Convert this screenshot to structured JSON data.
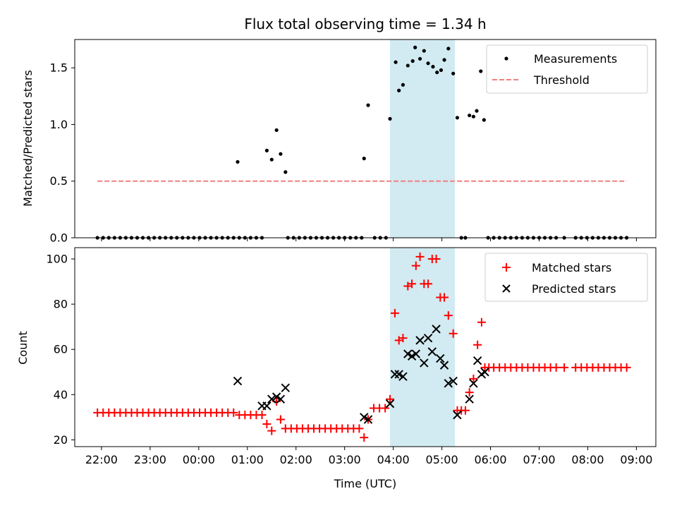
{
  "figure": {
    "title": "Flux total observing time = 1.34 h"
  },
  "colors": {
    "measurements": "#000000",
    "threshold": "#f08080",
    "matched": "#ff0000",
    "predicted": "#000000",
    "highlight": "#add8e6"
  },
  "chart_data": [
    {
      "type": "scatter",
      "title": "Flux total observing time = 1.34 h",
      "ylabel": "Matched/Predicted stars",
      "xlabel": "",
      "x_unit": "hours since 22:00 UTC",
      "xlim": [
        -0.55,
        11.4
      ],
      "ylim": [
        0,
        1.75
      ],
      "yticks": [
        0.0,
        0.5,
        1.0,
        1.5
      ],
      "ytick_labels": [
        "0.0",
        "0.5",
        "1.0",
        "1.5"
      ],
      "highlight_span": {
        "x_start": "03:56",
        "x_end": "05:16"
      },
      "legend": {
        "placement": "upper right",
        "entries": [
          "Measurements",
          "Threshold"
        ]
      },
      "series": [
        {
          "name": "Measurements",
          "marker": "dot",
          "points": [
            [
              "21:55",
              0
            ],
            [
              "22:02",
              0
            ],
            [
              "22:09",
              0
            ],
            [
              "22:16",
              0
            ],
            [
              "22:23",
              0
            ],
            [
              "22:30",
              0
            ],
            [
              "22:37",
              0
            ],
            [
              "22:44",
              0
            ],
            [
              "22:51",
              0
            ],
            [
              "22:58",
              0
            ],
            [
              "23:05",
              0
            ],
            [
              "23:12",
              0
            ],
            [
              "23:19",
              0
            ],
            [
              "23:26",
              0
            ],
            [
              "23:33",
              0
            ],
            [
              "23:40",
              0
            ],
            [
              "23:47",
              0
            ],
            [
              "23:54",
              0
            ],
            [
              "00:01",
              0
            ],
            [
              "00:08",
              0
            ],
            [
              "00:15",
              0
            ],
            [
              "00:22",
              0
            ],
            [
              "00:29",
              0
            ],
            [
              "00:36",
              0
            ],
            [
              "00:43",
              0
            ],
            [
              "00:50",
              0
            ],
            [
              "00:48",
              0.67
            ],
            [
              "00:57",
              0
            ],
            [
              "01:04",
              0
            ],
            [
              "01:11",
              0
            ],
            [
              "01:18",
              0
            ],
            [
              "01:24",
              0.77
            ],
            [
              "01:30",
              0.69
            ],
            [
              "01:36",
              0.95
            ],
            [
              "01:41",
              0.74
            ],
            [
              "01:47",
              0.58
            ],
            [
              "01:50",
              0
            ],
            [
              "01:57",
              0
            ],
            [
              "02:04",
              0
            ],
            [
              "02:11",
              0
            ],
            [
              "02:18",
              0
            ],
            [
              "02:25",
              0
            ],
            [
              "02:32",
              0
            ],
            [
              "02:39",
              0
            ],
            [
              "02:46",
              0
            ],
            [
              "02:53",
              0
            ],
            [
              "03:00",
              0
            ],
            [
              "03:07",
              0
            ],
            [
              "03:14",
              0
            ],
            [
              "03:21",
              0
            ],
            [
              "03:24",
              0.7
            ],
            [
              "03:29",
              1.17
            ],
            [
              "03:37",
              0
            ],
            [
              "03:44",
              0
            ],
            [
              "03:51",
              0
            ],
            [
              "03:56",
              1.05
            ],
            [
              "04:03",
              1.55
            ],
            [
              "04:07",
              1.3
            ],
            [
              "04:12",
              1.35
            ],
            [
              "04:18",
              1.52
            ],
            [
              "04:24",
              1.56
            ],
            [
              "04:27",
              1.68
            ],
            [
              "04:33",
              1.58
            ],
            [
              "04:38",
              1.65
            ],
            [
              "04:43",
              1.54
            ],
            [
              "04:49",
              1.51
            ],
            [
              "04:54",
              1.46
            ],
            [
              "04:59",
              1.48
            ],
            [
              "05:03",
              1.57
            ],
            [
              "05:08",
              1.67
            ],
            [
              "05:14",
              1.45
            ],
            [
              "05:19",
              1.06
            ],
            [
              "05:24",
              0
            ],
            [
              "05:29",
              0
            ],
            [
              "05:34",
              1.08
            ],
            [
              "05:39",
              1.07
            ],
            [
              "05:43",
              1.12
            ],
            [
              "05:48",
              1.47
            ],
            [
              "05:52",
              1.04
            ],
            [
              "05:57",
              0
            ],
            [
              "06:04",
              0
            ],
            [
              "06:11",
              0
            ],
            [
              "06:18",
              0
            ],
            [
              "06:25",
              0
            ],
            [
              "06:32",
              0
            ],
            [
              "06:39",
              0
            ],
            [
              "06:46",
              0
            ],
            [
              "06:53",
              0
            ],
            [
              "07:00",
              0
            ],
            [
              "07:07",
              0
            ],
            [
              "07:14",
              0
            ],
            [
              "07:21",
              0
            ],
            [
              "07:31",
              0
            ],
            [
              "07:45",
              0
            ],
            [
              "07:52",
              0
            ],
            [
              "07:59",
              0
            ],
            [
              "08:06",
              0
            ],
            [
              "08:13",
              0
            ],
            [
              "08:20",
              0
            ],
            [
              "08:27",
              0
            ],
            [
              "08:34",
              0
            ],
            [
              "08:41",
              0
            ],
            [
              "08:48",
              0
            ]
          ]
        },
        {
          "name": "Threshold",
          "style": "dashed",
          "x": [
            "21:55",
            "08:48"
          ],
          "y": [
            0.5,
            0.5
          ]
        }
      ]
    },
    {
      "type": "scatter",
      "ylabel": "Count",
      "xlabel": "Time (UTC)",
      "xlim": [
        -0.55,
        11.4
      ],
      "ylim": [
        17,
        105
      ],
      "yticks": [
        20,
        40,
        60,
        80,
        100
      ],
      "ytick_labels": [
        "20",
        "40",
        "60",
        "80",
        "100"
      ],
      "xticks": [
        "22:00",
        "23:00",
        "00:00",
        "01:00",
        "02:00",
        "03:00",
        "04:00",
        "05:00",
        "06:00",
        "07:00",
        "08:00",
        "09:00"
      ],
      "highlight_span": {
        "x_start": "03:56",
        "x_end": "05:16"
      },
      "legend": {
        "placement": "upper right",
        "entries": [
          "Matched stars",
          "Predicted stars"
        ]
      },
      "series": [
        {
          "name": "Matched stars",
          "marker": "plus",
          "points": [
            [
              "21:55",
              32
            ],
            [
              "22:02",
              32
            ],
            [
              "22:09",
              32
            ],
            [
              "22:16",
              32
            ],
            [
              "22:23",
              32
            ],
            [
              "22:30",
              32
            ],
            [
              "22:37",
              32
            ],
            [
              "22:44",
              32
            ],
            [
              "22:51",
              32
            ],
            [
              "22:58",
              32
            ],
            [
              "23:05",
              32
            ],
            [
              "23:12",
              32
            ],
            [
              "23:19",
              32
            ],
            [
              "23:26",
              32
            ],
            [
              "23:33",
              32
            ],
            [
              "23:40",
              32
            ],
            [
              "23:47",
              32
            ],
            [
              "23:54",
              32
            ],
            [
              "00:01",
              32
            ],
            [
              "00:08",
              32
            ],
            [
              "00:15",
              32
            ],
            [
              "00:22",
              32
            ],
            [
              "00:29",
              32
            ],
            [
              "00:36",
              32
            ],
            [
              "00:43",
              32
            ],
            [
              "00:50",
              31
            ],
            [
              "00:57",
              31
            ],
            [
              "01:04",
              31
            ],
            [
              "01:11",
              31
            ],
            [
              "01:18",
              31
            ],
            [
              "01:24",
              27
            ],
            [
              "01:30",
              24
            ],
            [
              "01:36",
              37
            ],
            [
              "01:41",
              29
            ],
            [
              "01:47",
              25
            ],
            [
              "01:54",
              25
            ],
            [
              "02:01",
              25
            ],
            [
              "02:08",
              25
            ],
            [
              "02:15",
              25
            ],
            [
              "02:22",
              25
            ],
            [
              "02:29",
              25
            ],
            [
              "02:36",
              25
            ],
            [
              "02:43",
              25
            ],
            [
              "02:50",
              25
            ],
            [
              "02:57",
              25
            ],
            [
              "03:04",
              25
            ],
            [
              "03:11",
              25
            ],
            [
              "03:18",
              25
            ],
            [
              "03:24",
              21
            ],
            [
              "03:29",
              29
            ],
            [
              "03:36",
              34
            ],
            [
              "03:43",
              34
            ],
            [
              "03:50",
              34
            ],
            [
              "03:56",
              38
            ],
            [
              "04:02",
              76
            ],
            [
              "04:07",
              64
            ],
            [
              "04:12",
              65
            ],
            [
              "04:18",
              88
            ],
            [
              "04:23",
              89
            ],
            [
              "04:28",
              97
            ],
            [
              "04:33",
              101
            ],
            [
              "04:38",
              89
            ],
            [
              "04:43",
              89
            ],
            [
              "04:48",
              100
            ],
            [
              "04:53",
              100
            ],
            [
              "04:58",
              83
            ],
            [
              "05:03",
              83
            ],
            [
              "05:08",
              75
            ],
            [
              "05:14",
              67
            ],
            [
              "05:19",
              33
            ],
            [
              "05:24",
              33
            ],
            [
              "05:29",
              33
            ],
            [
              "05:34",
              41
            ],
            [
              "05:39",
              47
            ],
            [
              "05:44",
              62
            ],
            [
              "05:49",
              72
            ],
            [
              "05:53",
              52
            ],
            [
              "05:58",
              52
            ],
            [
              "06:04",
              52
            ],
            [
              "06:11",
              52
            ],
            [
              "06:18",
              52
            ],
            [
              "06:25",
              52
            ],
            [
              "06:32",
              52
            ],
            [
              "06:39",
              52
            ],
            [
              "06:46",
              52
            ],
            [
              "06:53",
              52
            ],
            [
              "07:00",
              52
            ],
            [
              "07:07",
              52
            ],
            [
              "07:14",
              52
            ],
            [
              "07:21",
              52
            ],
            [
              "07:31",
              52
            ],
            [
              "07:45",
              52
            ],
            [
              "07:52",
              52
            ],
            [
              "07:59",
              52
            ],
            [
              "08:06",
              52
            ],
            [
              "08:13",
              52
            ],
            [
              "08:20",
              52
            ],
            [
              "08:27",
              52
            ],
            [
              "08:34",
              52
            ],
            [
              "08:41",
              52
            ],
            [
              "08:48",
              52
            ]
          ]
        },
        {
          "name": "Predicted stars",
          "marker": "x",
          "points": [
            [
              "00:48",
              46
            ],
            [
              "01:18",
              35
            ],
            [
              "01:24",
              35
            ],
            [
              "01:30",
              38
            ],
            [
              "01:36",
              39
            ],
            [
              "01:41",
              38
            ],
            [
              "01:47",
              43
            ],
            [
              "03:24",
              30
            ],
            [
              "03:29",
              29
            ],
            [
              "03:56",
              36
            ],
            [
              "04:02",
              49
            ],
            [
              "04:07",
              49
            ],
            [
              "04:12",
              48
            ],
            [
              "04:18",
              58
            ],
            [
              "04:23",
              57
            ],
            [
              "04:28",
              58
            ],
            [
              "04:33",
              64
            ],
            [
              "04:38",
              54
            ],
            [
              "04:43",
              65
            ],
            [
              "04:48",
              59
            ],
            [
              "04:53",
              69
            ],
            [
              "04:58",
              56
            ],
            [
              "05:03",
              53
            ],
            [
              "05:08",
              45
            ],
            [
              "05:14",
              46
            ],
            [
              "05:19",
              31
            ],
            [
              "05:34",
              38
            ],
            [
              "05:39",
              45
            ],
            [
              "05:44",
              55
            ],
            [
              "05:49",
              49
            ],
            [
              "05:53",
              50
            ]
          ]
        }
      ]
    }
  ]
}
